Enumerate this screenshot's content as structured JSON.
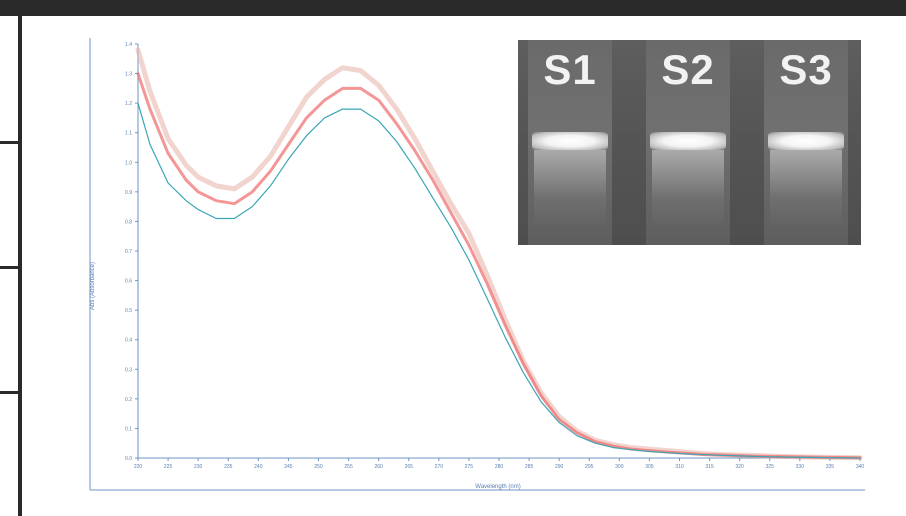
{
  "chart_data": {
    "type": "line",
    "title": "",
    "xlabel": "Wavelength (nm)",
    "ylabel": "Abs (Absorbance)",
    "xlim": [
      220,
      340
    ],
    "ylim": [
      0.0,
      1.4
    ],
    "x_ticks": [
      220,
      225,
      230,
      235,
      240,
      245,
      250,
      255,
      260,
      265,
      270,
      275,
      280,
      285,
      290,
      295,
      300,
      305,
      310,
      315,
      320,
      325,
      330,
      335,
      340
    ],
    "y_ticks": [
      0.0,
      0.1,
      0.2,
      0.3,
      0.4,
      0.5,
      0.6,
      0.7,
      0.8,
      0.9,
      1.0,
      1.1,
      1.2,
      1.3,
      1.4
    ],
    "grid": false,
    "legend": "none",
    "series": [
      {
        "color": "#e8b0a8",
        "x": [
          220,
          222,
          225,
          228,
          230,
          233,
          236,
          239,
          242,
          245,
          248,
          251,
          254,
          257,
          260,
          263,
          266,
          269,
          272,
          275,
          278,
          281,
          284,
          287,
          290,
          293,
          296,
          299,
          302,
          305,
          308,
          311,
          314,
          317,
          320,
          323,
          326,
          329,
          332,
          335,
          340
        ],
        "y": [
          1.38,
          1.24,
          1.08,
          0.99,
          0.95,
          0.92,
          0.91,
          0.95,
          1.02,
          1.12,
          1.22,
          1.28,
          1.32,
          1.31,
          1.26,
          1.18,
          1.08,
          0.97,
          0.86,
          0.76,
          0.62,
          0.47,
          0.33,
          0.22,
          0.14,
          0.09,
          0.06,
          0.045,
          0.035,
          0.03,
          0.025,
          0.02,
          0.015,
          0.012,
          0.01,
          0.008,
          0.006,
          0.004,
          0.003,
          0.002,
          0.001
        ]
      },
      {
        "color": "#f06a6a",
        "x": [
          220,
          222,
          225,
          228,
          230,
          233,
          236,
          239,
          242,
          245,
          248,
          251,
          254,
          257,
          260,
          263,
          266,
          269,
          272,
          275,
          278,
          281,
          284,
          287,
          290,
          293,
          296,
          299,
          302,
          305,
          308,
          311,
          314,
          317,
          320,
          323,
          326,
          329,
          332,
          335,
          340
        ],
        "y": [
          1.3,
          1.18,
          1.03,
          0.94,
          0.9,
          0.87,
          0.86,
          0.9,
          0.97,
          1.06,
          1.15,
          1.21,
          1.25,
          1.25,
          1.21,
          1.13,
          1.04,
          0.94,
          0.83,
          0.72,
          0.59,
          0.45,
          0.32,
          0.21,
          0.13,
          0.085,
          0.055,
          0.04,
          0.03,
          0.025,
          0.02,
          0.016,
          0.012,
          0.01,
          0.008,
          0.006,
          0.005,
          0.004,
          0.003,
          0.002,
          0.001
        ]
      },
      {
        "color": "#3aa6b5",
        "x": [
          220,
          222,
          225,
          228,
          230,
          233,
          236,
          239,
          242,
          245,
          248,
          251,
          254,
          257,
          260,
          263,
          266,
          269,
          272,
          275,
          278,
          281,
          284,
          287,
          290,
          293,
          296,
          299,
          302,
          305,
          308,
          311,
          314,
          317,
          320,
          323,
          326,
          329,
          332,
          335,
          340
        ],
        "y": [
          1.2,
          1.06,
          0.93,
          0.87,
          0.84,
          0.81,
          0.81,
          0.85,
          0.92,
          1.01,
          1.09,
          1.15,
          1.18,
          1.18,
          1.14,
          1.07,
          0.98,
          0.88,
          0.78,
          0.67,
          0.54,
          0.41,
          0.29,
          0.19,
          0.12,
          0.075,
          0.05,
          0.035,
          0.028,
          0.022,
          0.018,
          0.014,
          0.011,
          0.009,
          0.007,
          0.005,
          0.004,
          0.003,
          0.002,
          0.001,
          0.0
        ]
      }
    ]
  },
  "gel": {
    "lanes": [
      {
        "label": "S1"
      },
      {
        "label": "S2"
      },
      {
        "label": "S3"
      }
    ]
  }
}
